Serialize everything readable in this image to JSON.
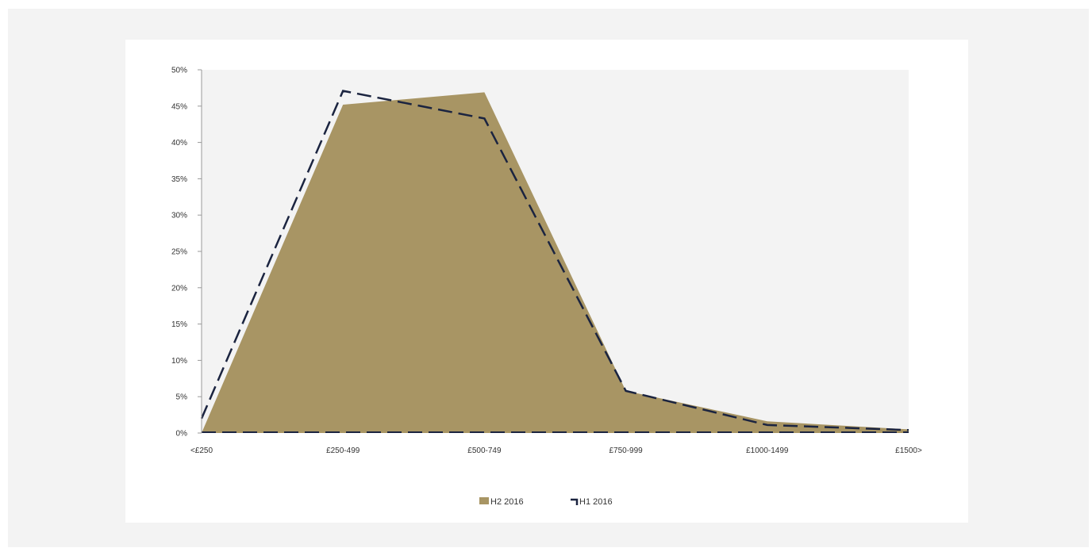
{
  "chart_data": {
    "type": "area",
    "title": "",
    "xlabel": "",
    "ylabel": "",
    "categories": [
      "<£250",
      "£250-499",
      "£500-749",
      "£750-999",
      "£1000-1499",
      "£1500>"
    ],
    "y_ticks": [
      "0%",
      "5%",
      "10%",
      "15%",
      "20%",
      "25%",
      "30%",
      "35%",
      "40%",
      "45%",
      "50%"
    ],
    "ylim": [
      0,
      50
    ],
    "grid": false,
    "legend_position": "bottom",
    "series": [
      {
        "name": "H2 2016",
        "style": "filled-area",
        "color": "#a89564",
        "values": [
          0,
          45.2,
          46.9,
          5.8,
          1.6,
          0.5
        ]
      },
      {
        "name": "H1 2016",
        "style": "dashed-line",
        "color": "#1b2440",
        "values": [
          2.0,
          47.1,
          43.3,
          5.8,
          1.1,
          0.4
        ]
      }
    ]
  },
  "colors": {
    "plot_background": "#f3f3f3",
    "card_background": "#ffffff",
    "page_background": "#f3f3f3"
  }
}
